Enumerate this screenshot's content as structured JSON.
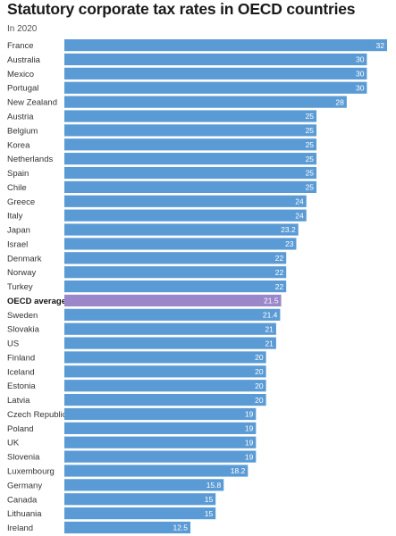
{
  "chart_data": {
    "type": "bar",
    "orientation": "horizontal",
    "title": "Statutory corporate tax rates in OECD countries",
    "subtitle": "In 2020",
    "xlim": [
      0,
      32
    ],
    "colors": {
      "bar": "#5b9bd5",
      "highlight": "#9b86c9"
    },
    "highlight": "OECD average",
    "categories": [
      "France",
      "Australia",
      "Mexico",
      "Portugal",
      "New Zealand",
      "Austria",
      "Belgium",
      "Korea",
      "Netherlands",
      "Spain",
      "Chile",
      "Greece",
      "Italy",
      "Japan",
      "Israel",
      "Denmark",
      "Norway",
      "Turkey",
      "OECD average",
      "Sweden",
      "Slovakia",
      "US",
      "Finland",
      "Iceland",
      "Estonia",
      "Latvia",
      "Czech Republic",
      "Poland",
      "UK",
      "Slovenia",
      "Luxembourg",
      "Germany",
      "Canada",
      "Lithuania",
      "Ireland"
    ],
    "values": [
      32,
      30,
      30,
      30,
      28,
      25,
      25,
      25,
      25,
      25,
      25,
      24,
      24,
      23.2,
      23,
      22,
      22,
      22,
      21.5,
      21.4,
      21,
      21,
      20,
      20,
      20,
      20,
      19,
      19,
      19,
      19,
      18.2,
      15.8,
      15,
      15,
      12.5
    ],
    "labels": [
      "32",
      "30",
      "30",
      "30",
      "28",
      "25",
      "25",
      "25",
      "25",
      "25",
      "25",
      "24",
      "24",
      "23.2",
      "23",
      "22",
      "22",
      "22",
      "21.5",
      "21.4",
      "21",
      "21",
      "20",
      "20",
      "20",
      "20",
      "19",
      "19",
      "19",
      "19",
      "18.2",
      "15.8",
      "15",
      "15",
      "12.5"
    ]
  }
}
